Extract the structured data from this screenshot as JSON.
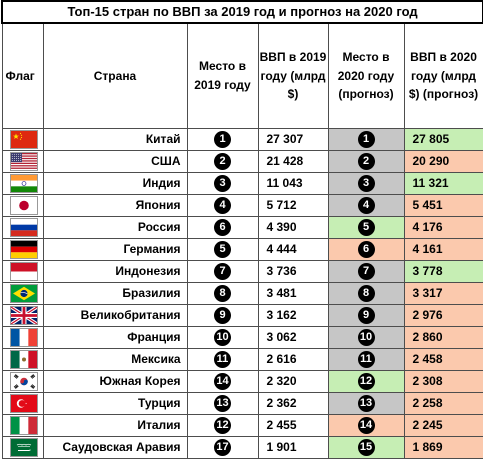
{
  "title": "Топ-15 стран по ВВП за 2019 год и прогноз на 2020 год",
  "headers": {
    "flag": "Флаг",
    "country": "Страна",
    "rank2019": "Место в 2019 году",
    "gdp2019": "ВВП в 2019 году (млрд $)",
    "rank2020": "Место в 2020 году (прогноз)",
    "gdp2020": "ВВП в 2020 году (млрд $) (прогноз)"
  },
  "colors": {
    "gray": "#c6c6c6",
    "green": "#c6eeb4",
    "orange": "#fbc9ad"
  },
  "rows": [
    {
      "flag": "china-flag-icon",
      "country": "Китай",
      "rank2019": "1",
      "gdp2019": "27 307",
      "rank2020": "1",
      "gdp2020": "27 805",
      "rank_status": "gray",
      "gdp_status": "green"
    },
    {
      "flag": "usa-flag-icon",
      "country": "США",
      "rank2019": "2",
      "gdp2019": "21 428",
      "rank2020": "2",
      "gdp2020": "20 290",
      "rank_status": "gray",
      "gdp_status": "orange"
    },
    {
      "flag": "india-flag-icon",
      "country": "Индия",
      "rank2019": "3",
      "gdp2019": "11 043",
      "rank2020": "3",
      "gdp2020": "11 321",
      "rank_status": "gray",
      "gdp_status": "green"
    },
    {
      "flag": "japan-flag-icon",
      "country": "Япония",
      "rank2019": "4",
      "gdp2019": "5 712",
      "rank2020": "4",
      "gdp2020": "5 451",
      "rank_status": "gray",
      "gdp_status": "orange"
    },
    {
      "flag": "russia-flag-icon",
      "country": "Россия",
      "rank2019": "6",
      "gdp2019": "4 390",
      "rank2020": "5",
      "gdp2020": "4 176",
      "rank_status": "green",
      "gdp_status": "orange"
    },
    {
      "flag": "germany-flag-icon",
      "country": "Германия",
      "rank2019": "5",
      "gdp2019": "4 444",
      "rank2020": "6",
      "gdp2020": "4 161",
      "rank_status": "orange",
      "gdp_status": "orange"
    },
    {
      "flag": "indonesia-flag-icon",
      "country": "Индонезия",
      "rank2019": "7",
      "gdp2019": "3 736",
      "rank2020": "7",
      "gdp2020": "3 778",
      "rank_status": "gray",
      "gdp_status": "green"
    },
    {
      "flag": "brazil-flag-icon",
      "country": "Бразилия",
      "rank2019": "8",
      "gdp2019": "3 481",
      "rank2020": "8",
      "gdp2020": "3 317",
      "rank_status": "gray",
      "gdp_status": "orange"
    },
    {
      "flag": "uk-flag-icon",
      "country": "Великобритания",
      "rank2019": "9",
      "gdp2019": "3 162",
      "rank2020": "9",
      "gdp2020": "2 976",
      "rank_status": "gray",
      "gdp_status": "orange"
    },
    {
      "flag": "france-flag-icon",
      "country": "Франция",
      "rank2019": "10",
      "gdp2019": "3 062",
      "rank2020": "10",
      "gdp2020": "2 860",
      "rank_status": "gray",
      "gdp_status": "orange"
    },
    {
      "flag": "mexico-flag-icon",
      "country": "Мексика",
      "rank2019": "11",
      "gdp2019": "2 616",
      "rank2020": "11",
      "gdp2020": "2 458",
      "rank_status": "gray",
      "gdp_status": "orange"
    },
    {
      "flag": "south-korea-flag-icon",
      "country": "Южная Корея",
      "rank2019": "14",
      "gdp2019": "2 320",
      "rank2020": "12",
      "gdp2020": "2 308",
      "rank_status": "green",
      "gdp_status": "orange"
    },
    {
      "flag": "turkey-flag-icon",
      "country": "Турция",
      "rank2019": "13",
      "gdp2019": "2 362",
      "rank2020": "13",
      "gdp2020": "2 258",
      "rank_status": "gray",
      "gdp_status": "orange"
    },
    {
      "flag": "italy-flag-icon",
      "country": "Италия",
      "rank2019": "12",
      "gdp2019": "2 455",
      "rank2020": "14",
      "gdp2020": "2 245",
      "rank_status": "orange",
      "gdp_status": "orange"
    },
    {
      "flag": "saudi-arabia-flag-icon",
      "country": "Саудовская Аравия",
      "rank2019": "17",
      "gdp2019": "1 901",
      "rank2020": "15",
      "gdp2020": "1 869",
      "rank_status": "green",
      "gdp_status": "orange"
    }
  ]
}
